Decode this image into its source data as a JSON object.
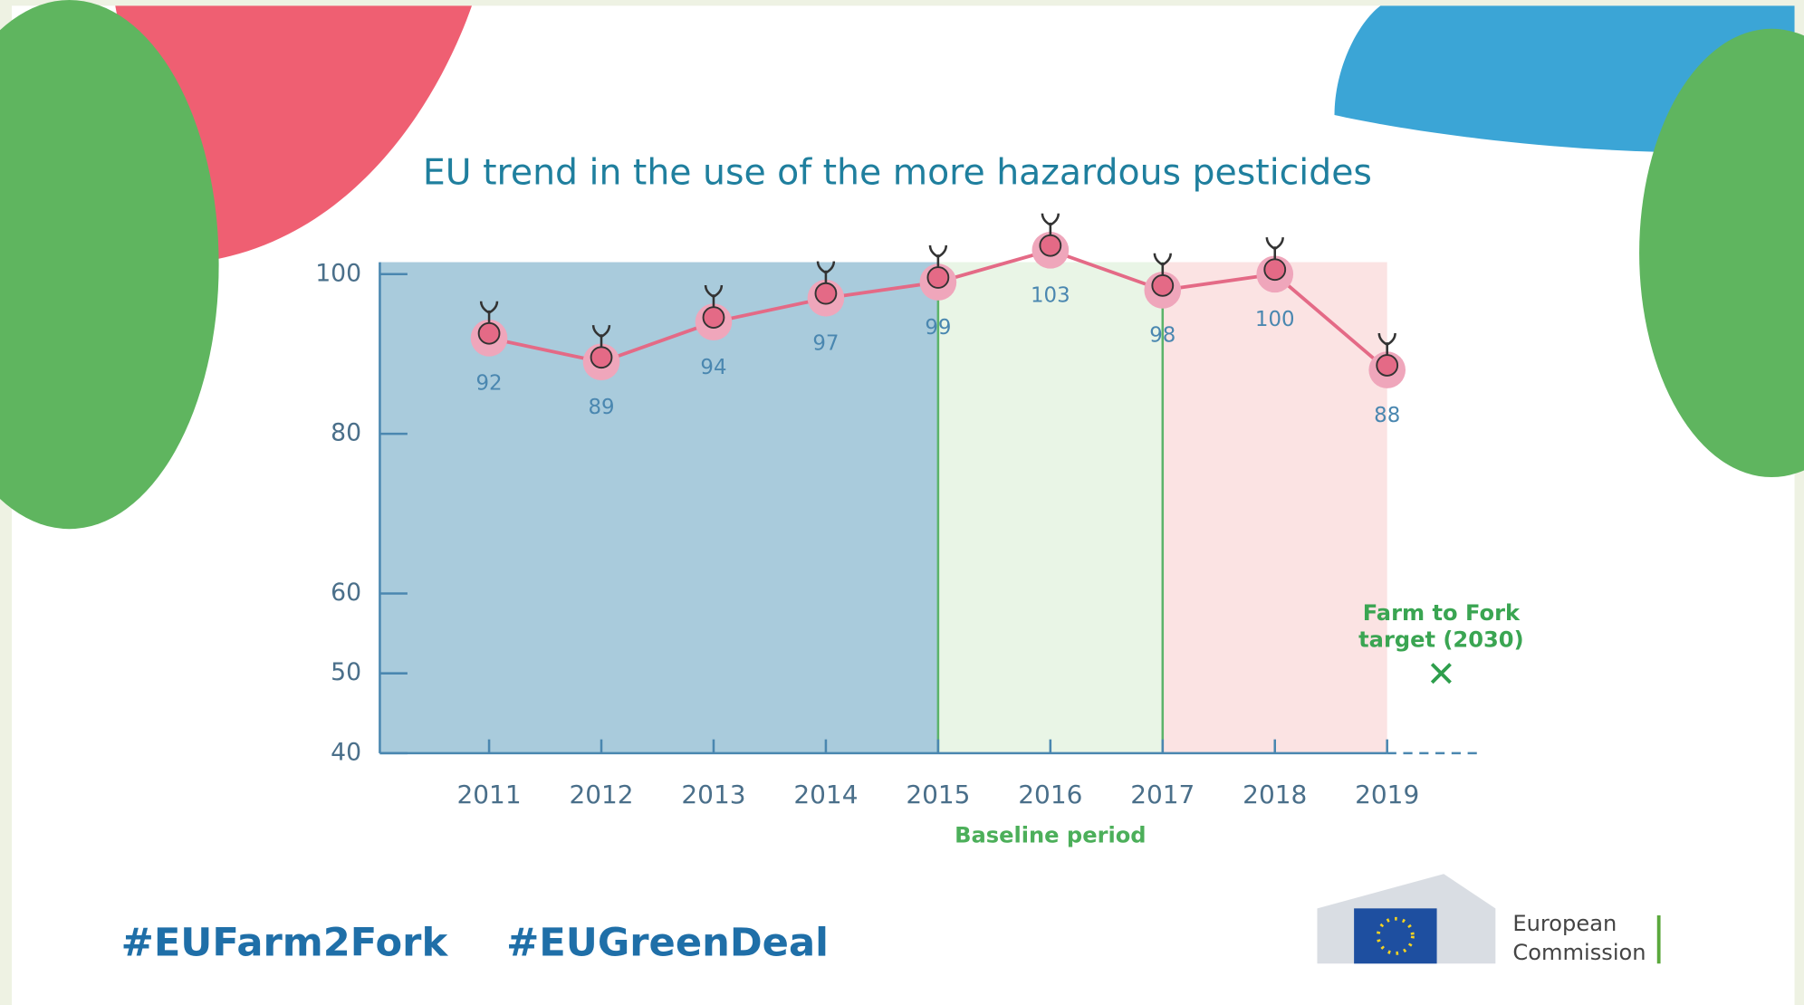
{
  "chart_data": {
    "type": "line",
    "title": "EU trend in the use of the more hazardous pesticides",
    "categories": [
      "2011",
      "2012",
      "2013",
      "2014",
      "2015",
      "2016",
      "2017",
      "2018",
      "2019"
    ],
    "values": [
      92,
      89,
      94,
      97,
      99,
      103,
      98,
      100,
      88
    ],
    "color": "#e46a86",
    "ylim": [
      40,
      101.5
    ],
    "yticks": [
      40,
      50,
      60,
      80,
      100
    ],
    "baseline_period": {
      "label": "Baseline period",
      "categories": [
        "2015",
        "2017"
      ]
    },
    "target": {
      "label": "Farm to Fork target (2030)",
      "value": 50
    }
  },
  "footer": {
    "hashtags": [
      "#EUFarm2Fork",
      "#EUGreenDeal"
    ],
    "logo": [
      "European",
      "Commission"
    ]
  }
}
